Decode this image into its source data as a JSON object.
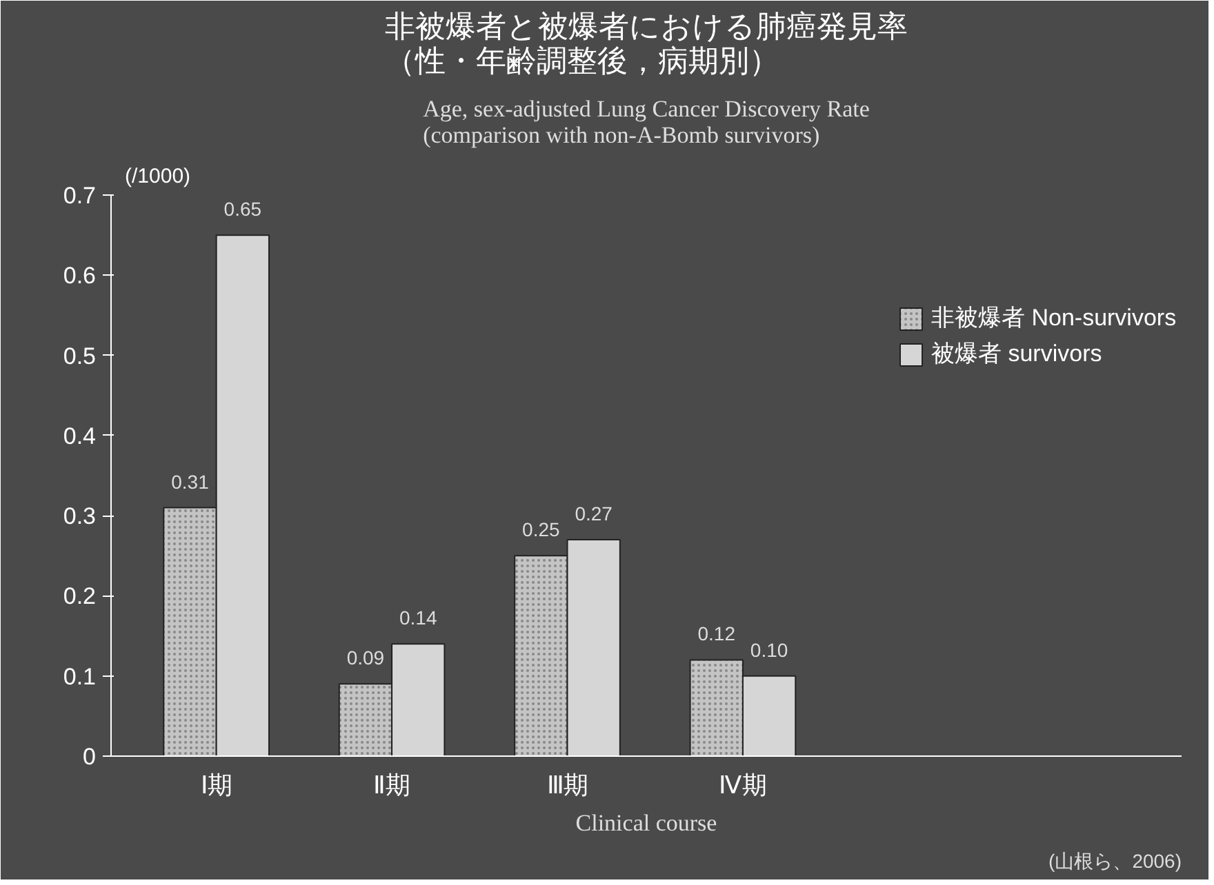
{
  "chart_data": {
    "type": "bar",
    "title": "非被爆者と被爆者における肺癌発見率（性・年齢調整後，病期別）",
    "subtitle": "Age, sex-adjusted Lung Cancer Discovery Rate\n(comparison with non-A-Bomb survivors)",
    "ylabel": "(/1000)",
    "xlabel": "Clinical course",
    "categories": [
      "Ⅰ期",
      "Ⅱ期",
      "Ⅲ期",
      "Ⅳ期"
    ],
    "series": [
      {
        "name": "非被爆者 Non-survivors",
        "color": "#c4c4c4",
        "values": [
          0.31,
          0.09,
          0.25,
          0.12
        ],
        "value_labels": [
          "0.31",
          "0.09",
          "0.25",
          "0.12"
        ]
      },
      {
        "name": "被爆者 survivors",
        "color": "#d6d6d6",
        "values": [
          0.65,
          0.14,
          0.27,
          0.1
        ],
        "value_labels": [
          "0.65",
          "0.14",
          "0.27",
          "0.10"
        ]
      }
    ],
    "ylim": [
      0,
      0.7
    ],
    "yticks": [
      0,
      0.1,
      0.2,
      0.3,
      0.4,
      0.5,
      0.6,
      0.7
    ],
    "grid": false,
    "legend": "right",
    "annotations": [
      "(山根ら、2006)"
    ]
  }
}
